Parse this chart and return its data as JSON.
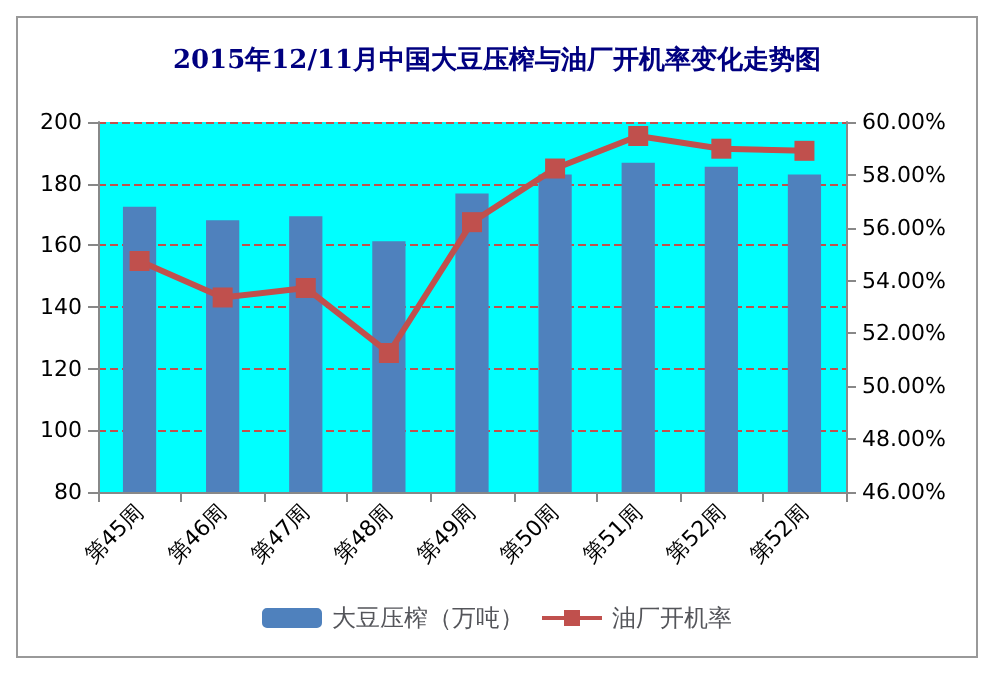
{
  "chart_data": {
    "type": "bar",
    "title": "2015年12/11月中国大豆压榨与油厂开机率变化走势图",
    "categories": [
      "第45周",
      "第46周",
      "第47周",
      "第48周",
      "第49周",
      "第50周",
      "第51周",
      "第52周",
      "第52周"
    ],
    "series": [
      {
        "name": "大豆压榨（万吨）",
        "color": "#4f81bd",
        "values": [
          172.5,
          168.1,
          169.4,
          161.3,
          176.8,
          183,
          186.8,
          185.5,
          183
        ]
      },
      {
        "name": "油厂开机率",
        "type": "line",
        "axis": "y2",
        "color": "#c0504d",
        "marker": "square",
        "values": [
          54.74,
          53.36,
          53.72,
          51.26,
          56.21,
          58.24,
          59.47,
          58.99,
          58.91
        ]
      }
    ],
    "ylim": [
      80,
      200
    ],
    "yticks": [
      80,
      100,
      120,
      140,
      160,
      180,
      200
    ],
    "y2lim": [
      46,
      60
    ],
    "y2ticks": [
      {
        "value": 46,
        "label": "46.00%"
      },
      {
        "value": 48,
        "label": "48.00%"
      },
      {
        "value": 50,
        "label": "50.00%"
      },
      {
        "value": 52,
        "label": "52.00%"
      },
      {
        "value": 54,
        "label": "54.00%"
      },
      {
        "value": 56,
        "label": "56.00%"
      },
      {
        "value": 58,
        "label": "58.00%"
      },
      {
        "value": 60,
        "label": "60.00%"
      }
    ],
    "grid": "y",
    "legend": "bottom"
  }
}
